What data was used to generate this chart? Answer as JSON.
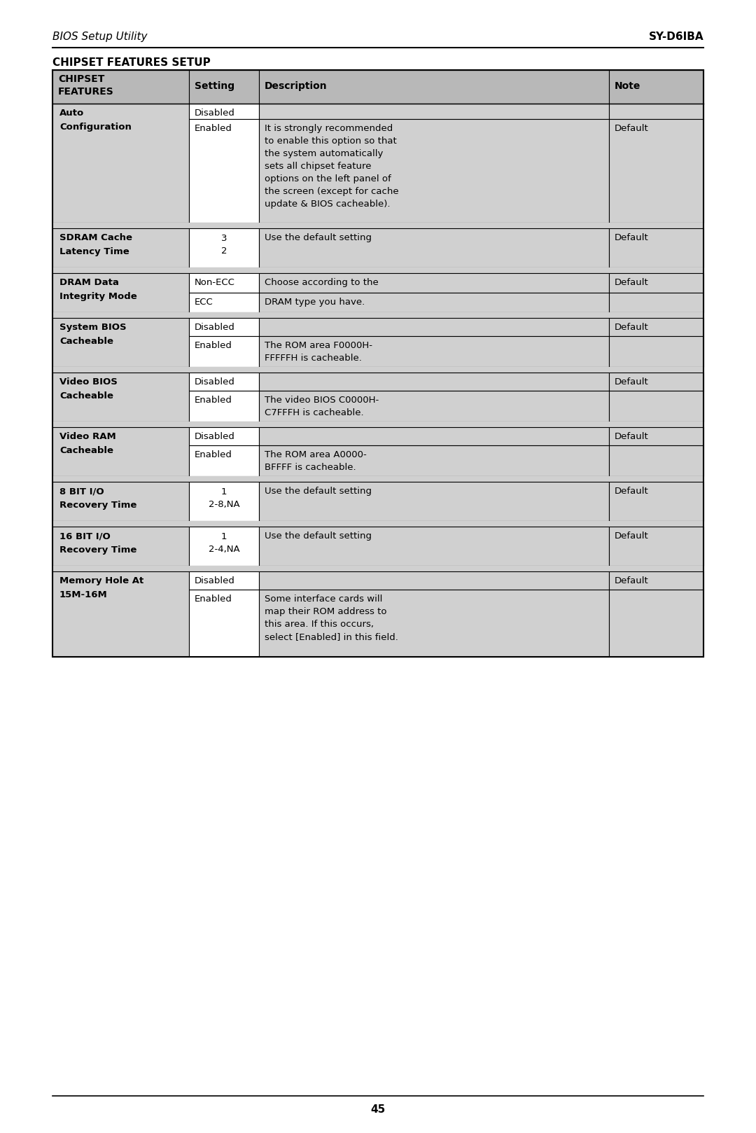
{
  "header_left": "BIOS Setup Utility",
  "header_right": "SY-D6IBA",
  "section_title": "CHIPSET FEATURES SETUP",
  "page_number": "45",
  "bg_color": "#ffffff",
  "col_header_bg": "#b8b8b8",
  "row_bg_light": "#d0d0d0",
  "row_bg_white": "#ffffff",
  "col_headers": [
    "CHIPSET\nFEATURES",
    "Setting",
    "Description",
    "Note"
  ],
  "rows": [
    {
      "feature_bold": "Auto",
      "feature_normal": "Configuration",
      "sub_rows": [
        {
          "setting": "Disabled",
          "description": "",
          "note": "",
          "setting_center": false
        },
        {
          "setting": "Enabled",
          "description": "It is strongly recommended\nto enable this option so that\nthe system automatically\nsets all chipset feature\noptions on the left panel of\nthe screen (except for cache\nupdate & BIOS cacheable).",
          "note": "Default",
          "setting_center": false
        }
      ]
    },
    {
      "feature_bold": "SDRAM Cache",
      "feature_normal": "Latency Time",
      "sub_rows": [
        {
          "setting": "3\n2",
          "description": "Use the default setting",
          "note": "Default",
          "setting_center": true
        }
      ]
    },
    {
      "feature_bold": "DRAM Data",
      "feature_normal": "Integrity Mode",
      "sub_rows": [
        {
          "setting": "Non-ECC",
          "description": "Choose according to the",
          "note": "Default",
          "setting_center": false
        },
        {
          "setting": "ECC",
          "description": "DRAM type you have.",
          "note": "",
          "setting_center": false
        }
      ]
    },
    {
      "feature_bold": "System BIOS",
      "feature_normal": "Cacheable",
      "sub_rows": [
        {
          "setting": "Disabled",
          "description": "",
          "note": "Default",
          "setting_center": false
        },
        {
          "setting": "Enabled",
          "description": "The ROM area F0000H-\nFFFFFH is cacheable.",
          "note": "",
          "setting_center": false
        }
      ]
    },
    {
      "feature_bold": "Video BIOS",
      "feature_normal": "Cacheable",
      "sub_rows": [
        {
          "setting": "Disabled",
          "description": "",
          "note": "Default",
          "setting_center": false
        },
        {
          "setting": "Enabled",
          "description": "The video BIOS C0000H-\nC7FFFH is cacheable.",
          "note": "",
          "setting_center": false
        }
      ]
    },
    {
      "feature_bold": "Video RAM",
      "feature_normal": "Cacheable",
      "sub_rows": [
        {
          "setting": "Disabled",
          "description": "",
          "note": "Default",
          "setting_center": false
        },
        {
          "setting": "Enabled",
          "description": "The ROM area A0000-\nBFFFF is cacheable.",
          "note": "",
          "setting_center": false
        }
      ]
    },
    {
      "feature_bold": "8 BIT I/O",
      "feature_normal": "Recovery Time",
      "sub_rows": [
        {
          "setting": "1\n2-8,NA",
          "description": "Use the default setting",
          "note": "Default",
          "setting_center": true
        }
      ]
    },
    {
      "feature_bold": "16 BIT I/O",
      "feature_normal": "Recovery Time",
      "sub_rows": [
        {
          "setting": "1\n2-4,NA",
          "description": "Use the default setting",
          "note": "Default",
          "setting_center": true
        }
      ]
    },
    {
      "feature_bold": "Memory Hole At",
      "feature_normal": "15M-16M",
      "sub_rows": [
        {
          "setting": "Disabled",
          "description": "",
          "note": "Default",
          "setting_center": false
        },
        {
          "setting": "Enabled",
          "description": "Some interface cards will\nmap their ROM address to\nthis area. If this occurs,\nselect [Enabled] in this field.",
          "note": "",
          "setting_center": false
        }
      ]
    }
  ]
}
